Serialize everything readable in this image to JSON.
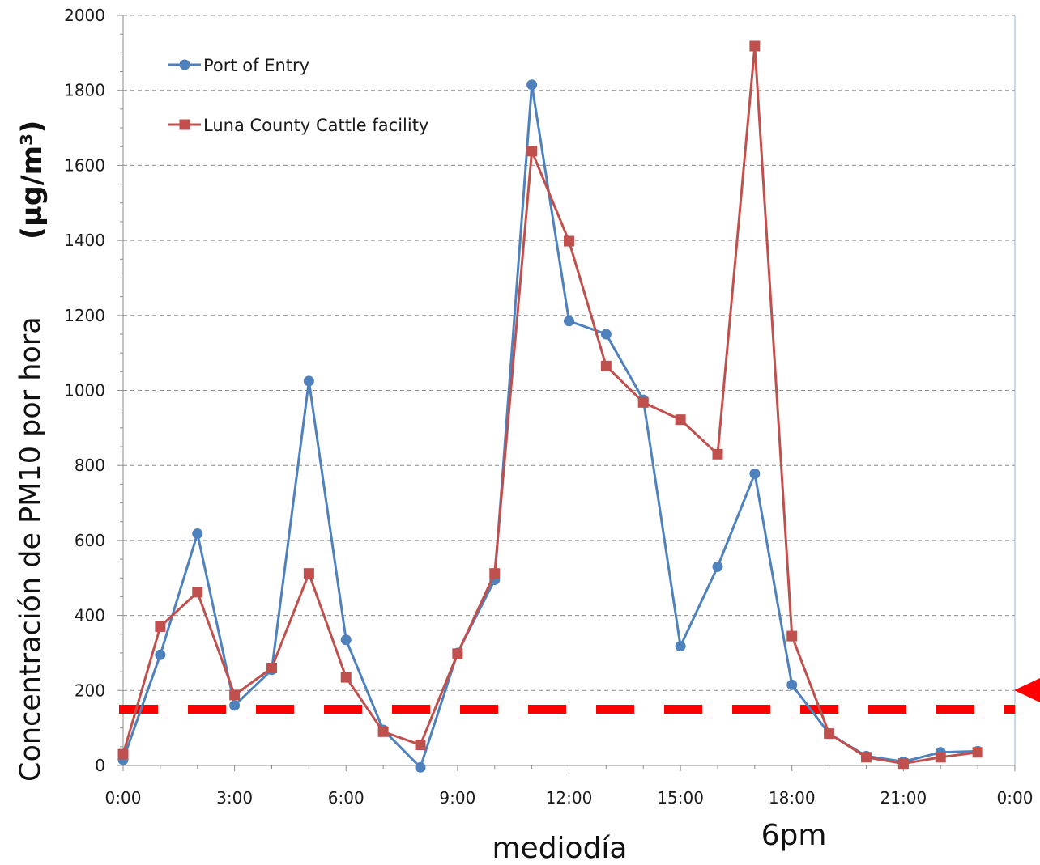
{
  "chart_data": {
    "type": "line",
    "ylabel_main": "Concentración de PM10 por hora",
    "ylabel_unit": "(µg/m³)",
    "ylim": [
      0,
      2000
    ],
    "y_ticks": [
      "0",
      "200",
      "400",
      "600",
      "800",
      "1000",
      "1200",
      "1400",
      "1600",
      "1800",
      "2000"
    ],
    "xlim": [
      0,
      24
    ],
    "x_ticks": [
      "0:00",
      "3:00",
      "6:00",
      "9:00",
      "12:00",
      "15:00",
      "18:00",
      "21:00",
      "0:00"
    ],
    "grid": "horizontal dashed",
    "legend_position": "top-left",
    "x": [
      0,
      1,
      2,
      3,
      4,
      5,
      6,
      7,
      8,
      9,
      10,
      11,
      12,
      13,
      14,
      15,
      16,
      17,
      18,
      19,
      20,
      21,
      22,
      23
    ],
    "series": [
      {
        "name": "Port of Entry",
        "color": "#4f81bd",
        "marker": "circle",
        "values": [
          15,
          295,
          618,
          160,
          255,
          1025,
          335,
          95,
          -5,
          300,
          495,
          1815,
          1185,
          1150,
          975,
          318,
          530,
          778,
          215,
          85,
          25,
          10,
          35,
          38
        ]
      },
      {
        "name": "Luna County Cattle facility",
        "color": "#c0504d",
        "marker": "square",
        "values": [
          30,
          370,
          462,
          188,
          260,
          512,
          235,
          90,
          55,
          298,
          512,
          1638,
          1398,
          1065,
          968,
          922,
          830,
          1918,
          345,
          85,
          22,
          5,
          22,
          35
        ]
      }
    ],
    "reference_line": {
      "value": 150,
      "color": "#ff0000",
      "style": "dashed"
    },
    "annotations": [
      "mediodía",
      "6pm"
    ]
  }
}
